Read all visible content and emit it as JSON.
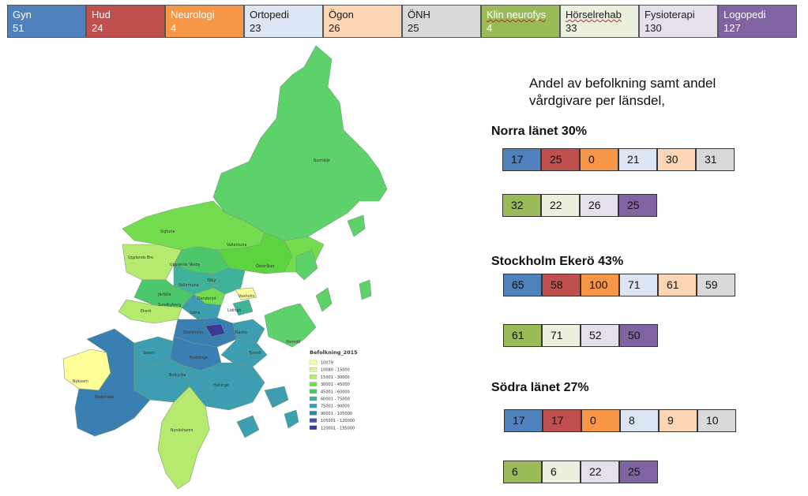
{
  "specialties": [
    {
      "label": "Gyn",
      "count": "51",
      "color": "#4f81bd",
      "text": "light"
    },
    {
      "label": "Hud",
      "count": "24",
      "color": "#c0504d",
      "text": "light"
    },
    {
      "label": "Neurologi",
      "count": "4",
      "color": "#f79646",
      "text": "light"
    },
    {
      "label": "Ortopedi",
      "count": "23",
      "color": "#dce6f2",
      "text": "dark"
    },
    {
      "label": "Ögon",
      "count": "26",
      "color": "#fcd5b5",
      "text": "dark"
    },
    {
      "label": "ÖNH",
      "count": "25",
      "color": "#d9d9d9",
      "text": "dark"
    },
    {
      "label": "Klin  neurofys",
      "count": "4",
      "color": "#9bbb59",
      "text": "light",
      "wavy": true
    },
    {
      "label": "Hörselrehab",
      "count": "33",
      "color": "#ebf1de",
      "text": "dark",
      "wavy": true
    },
    {
      "label": "Fysioterapi",
      "count": "130",
      "color": "#e6e0ec",
      "text": "dark"
    },
    {
      "label": "Logopedi",
      "count": "127",
      "color": "#8064a2",
      "text": "light"
    }
  ],
  "heading_line1": "Andel av befolkning samt andel",
  "heading_line2": "vårdgivare per länsdel,",
  "regions": [
    {
      "name": "Norra länet 30%",
      "values": [
        "17",
        "25",
        "0",
        "21",
        "30",
        "31",
        "32",
        "22",
        "26",
        "25"
      ]
    },
    {
      "name": "Stockholm  Ekerö 43%",
      "values": [
        "65",
        "58",
        "100",
        "71",
        "61",
        "59",
        "61",
        "71",
        "52",
        "50"
      ]
    },
    {
      "name": "Södra länet 27%",
      "values": [
        "17",
        "17",
        "0",
        "8",
        "9",
        "10",
        "6",
        "6",
        "22",
        "25"
      ]
    }
  ],
  "map": {
    "legend_title": "Befolkning_2015",
    "legend": [
      {
        "label": "10079",
        "color": "#ffff99"
      },
      {
        "label": "10080 - 15000",
        "color": "#e0f599"
      },
      {
        "label": "15001 - 30000",
        "color": "#b5ea6e"
      },
      {
        "label": "30001 - 45000",
        "color": "#72dc4e"
      },
      {
        "label": "45001 - 60000",
        "color": "#4cc76c"
      },
      {
        "label": "60001 - 75000",
        "color": "#3fb39a"
      },
      {
        "label": "75001 - 90000",
        "color": "#3c9eb0"
      },
      {
        "label": "90001 - 105000",
        "color": "#3a7fb2"
      },
      {
        "label": "105001 - 120000",
        "color": "#3c55a6"
      },
      {
        "label": "120001 - 135000",
        "color": "#3a3a96"
      }
    ],
    "places": [
      "Norrtälje",
      "Sigtuna",
      "Vallentuna",
      "Upplands Bro",
      "Upplands Väsby",
      "Österåker",
      "Täby",
      "Sollentuna",
      "Vaxholm",
      "Järfälla",
      "Danderyd",
      "Sundbyberg",
      "Solna",
      "Ekerö",
      "Lidingö",
      "Stockholm",
      "Värmdö",
      "Nacka",
      "Huddinge",
      "Tyresö",
      "Salem",
      "Botkyrka",
      "Nykvarn",
      "Södertälje",
      "Haninge",
      "Nynäshamn"
    ]
  }
}
